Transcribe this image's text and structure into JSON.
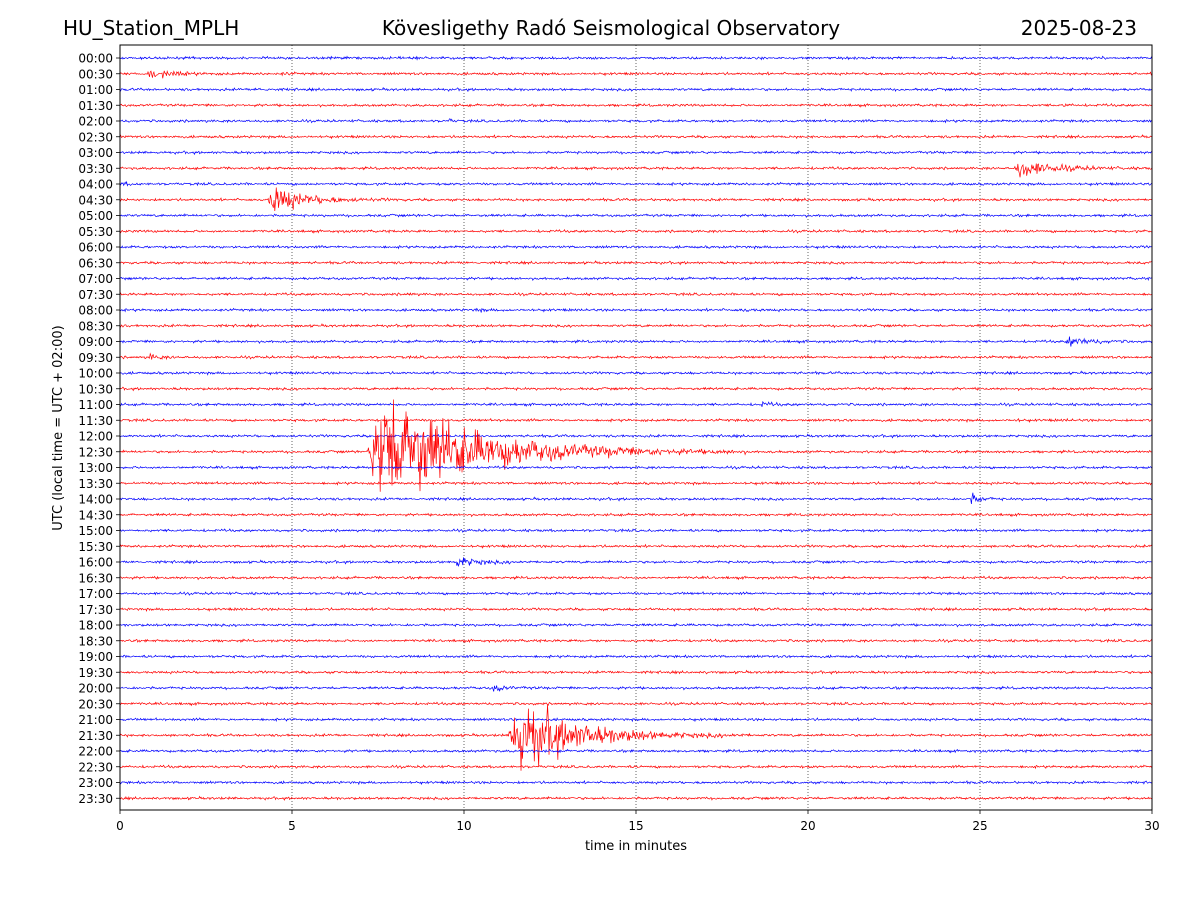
{
  "header": {
    "station": "HU_Station_MPLH",
    "observatory": "Kövesligethy Radó Seismological Observatory",
    "date": "2025-08-23"
  },
  "chart_data": {
    "type": "line",
    "title": "Kövesligethy Radó Seismological Observatory",
    "xlabel": "time in minutes",
    "ylabel": "UTC (local time = UTC + 02:00)",
    "xlim": [
      0,
      30
    ],
    "x_ticks": [
      "0",
      "5",
      "10",
      "15",
      "20",
      "25",
      "30"
    ],
    "grid": "vertical dotted lines at 5-minute intervals",
    "row_colors": [
      "#0000ff",
      "#ff0000"
    ],
    "rows": [
      "00:00",
      "00:30",
      "01:00",
      "01:30",
      "02:00",
      "02:30",
      "03:00",
      "03:30",
      "04:00",
      "04:30",
      "05:00",
      "05:30",
      "06:00",
      "06:30",
      "07:00",
      "07:30",
      "08:00",
      "08:30",
      "09:00",
      "09:30",
      "10:00",
      "10:30",
      "11:00",
      "11:30",
      "12:00",
      "12:30",
      "13:00",
      "13:30",
      "14:00",
      "14:30",
      "15:00",
      "15:30",
      "16:00",
      "16:30",
      "17:00",
      "17:30",
      "18:00",
      "18:30",
      "19:00",
      "19:30",
      "20:00",
      "20:30",
      "21:00",
      "21:30",
      "22:00",
      "22:30",
      "23:00",
      "23:30"
    ],
    "events": [
      {
        "row": "00:30",
        "start_min": 0.8,
        "duration_min": 2.5,
        "amplitude": 0.6
      },
      {
        "row": "00:30",
        "start_min": 4.7,
        "duration_min": 0.6,
        "amplitude": 0.25
      },
      {
        "row": "01:00",
        "start_min": 3.9,
        "duration_min": 0.8,
        "amplitude": 0.25
      },
      {
        "row": "01:30",
        "start_min": 27.4,
        "duration_min": 0.6,
        "amplitude": 0.25
      },
      {
        "row": "02:00",
        "start_min": 9.5,
        "duration_min": 0.4,
        "amplitude": 0.4
      },
      {
        "row": "03:30",
        "start_min": 26.0,
        "duration_min": 4.0,
        "amplitude": 1.2
      },
      {
        "row": "04:00",
        "start_min": 0.0,
        "duration_min": 0.6,
        "amplitude": 0.3
      },
      {
        "row": "04:30",
        "start_min": 4.3,
        "duration_min": 4.0,
        "amplitude": 1.8
      },
      {
        "row": "07:30",
        "start_min": 8.3,
        "duration_min": 0.6,
        "amplitude": 0.25
      },
      {
        "row": "08:00",
        "start_min": 10.3,
        "duration_min": 1.0,
        "amplitude": 0.2
      },
      {
        "row": "08:00",
        "start_min": 18.0,
        "duration_min": 1.2,
        "amplitude": 0.2
      },
      {
        "row": "09:00",
        "start_min": 27.5,
        "duration_min": 2.5,
        "amplitude": 0.6
      },
      {
        "row": "09:30",
        "start_min": 0.8,
        "duration_min": 1.2,
        "amplitude": 0.4
      },
      {
        "row": "11:00",
        "start_min": 18.6,
        "duration_min": 1.2,
        "amplitude": 0.3
      },
      {
        "row": "11:30",
        "start_min": 26.0,
        "duration_min": 0.5,
        "amplitude": 0.25
      },
      {
        "row": "11:30",
        "start_min": 27.5,
        "duration_min": 0.4,
        "amplitude": 0.2
      },
      {
        "row": "12:30",
        "start_min": 7.2,
        "duration_min": 11.0,
        "amplitude": 8.0
      },
      {
        "row": "14:00",
        "start_min": 24.7,
        "duration_min": 1.0,
        "amplitude": 0.9
      },
      {
        "row": "16:00",
        "start_min": 9.7,
        "duration_min": 2.5,
        "amplitude": 0.7
      },
      {
        "row": "19:00",
        "start_min": 14.9,
        "duration_min": 0.4,
        "amplitude": 0.2
      },
      {
        "row": "19:30",
        "start_min": 17.0,
        "duration_min": 0.3,
        "amplitude": 0.25
      },
      {
        "row": "20:00",
        "start_min": 10.8,
        "duration_min": 1.4,
        "amplitude": 0.5
      },
      {
        "row": "21:30",
        "start_min": 11.3,
        "duration_min": 7.0,
        "amplitude": 5.0
      }
    ]
  }
}
